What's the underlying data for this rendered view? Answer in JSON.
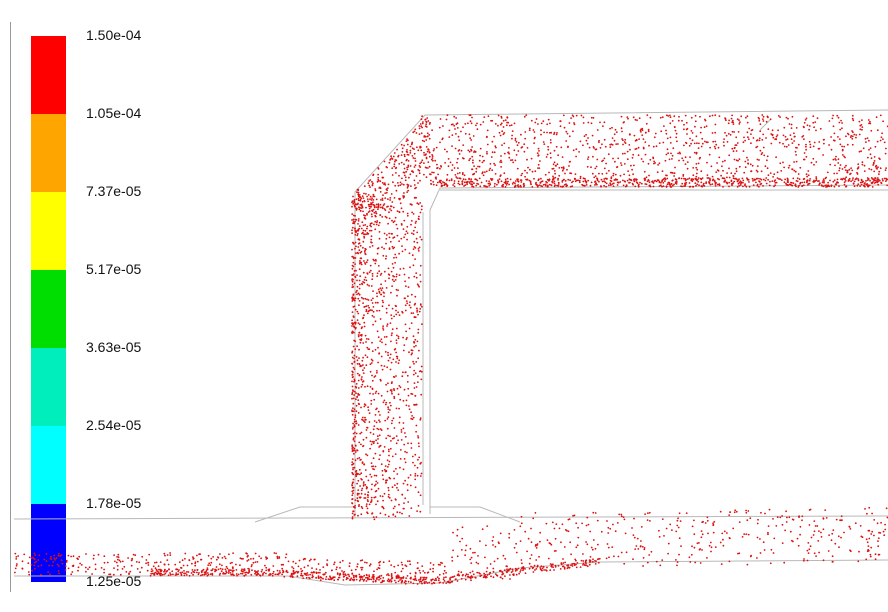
{
  "legend": {
    "labels": [
      "1.50e-04",
      "1.05e-04",
      "7.37e-05",
      "5.17e-05",
      "3.63e-05",
      "2.54e-05",
      "1.78e-05",
      "1.25e-05"
    ],
    "colors": [
      "#ff0000",
      "#ffa500",
      "#ffff00",
      "#00dd00",
      "#00eebb",
      "#00ffff",
      "#0000ff"
    ]
  },
  "particle_color": "#dd1111",
  "outline_color": "#b8b8b8"
}
